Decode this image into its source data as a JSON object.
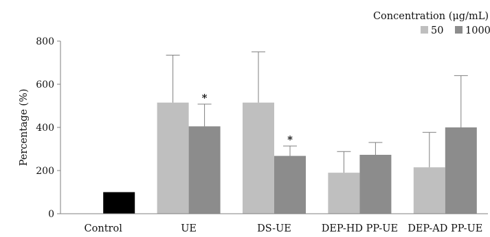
{
  "chart_data": {
    "type": "bar",
    "title": "",
    "xlabel": "",
    "ylabel": "Percentage (%)",
    "ylim": [
      0,
      800
    ],
    "yticks": [
      0,
      200,
      400,
      600,
      800
    ],
    "grid": false,
    "legend": {
      "title": "Concentration (μg/mL)",
      "placement": "top-right"
    },
    "categories": [
      "Control",
      "UE",
      "DS-UE",
      "DEP-HD PP-UE",
      "DEP-AD PP-UE"
    ],
    "control": {
      "value": 100,
      "color": "#000000"
    },
    "series": [
      {
        "name": "50",
        "color": "#bfbfbf",
        "values": [
          null,
          515,
          515,
          190,
          215
        ],
        "errors": [
          null,
          220,
          235,
          98,
          162
        ],
        "significant": [
          false,
          false,
          false,
          false,
          false
        ]
      },
      {
        "name": "1000",
        "color": "#8c8c8c",
        "values": [
          null,
          405,
          268,
          273,
          400
        ],
        "errors": [
          null,
          103,
          46,
          57,
          240
        ],
        "significant": [
          false,
          true,
          true,
          false,
          false
        ]
      }
    ],
    "significance_marker": "*"
  }
}
